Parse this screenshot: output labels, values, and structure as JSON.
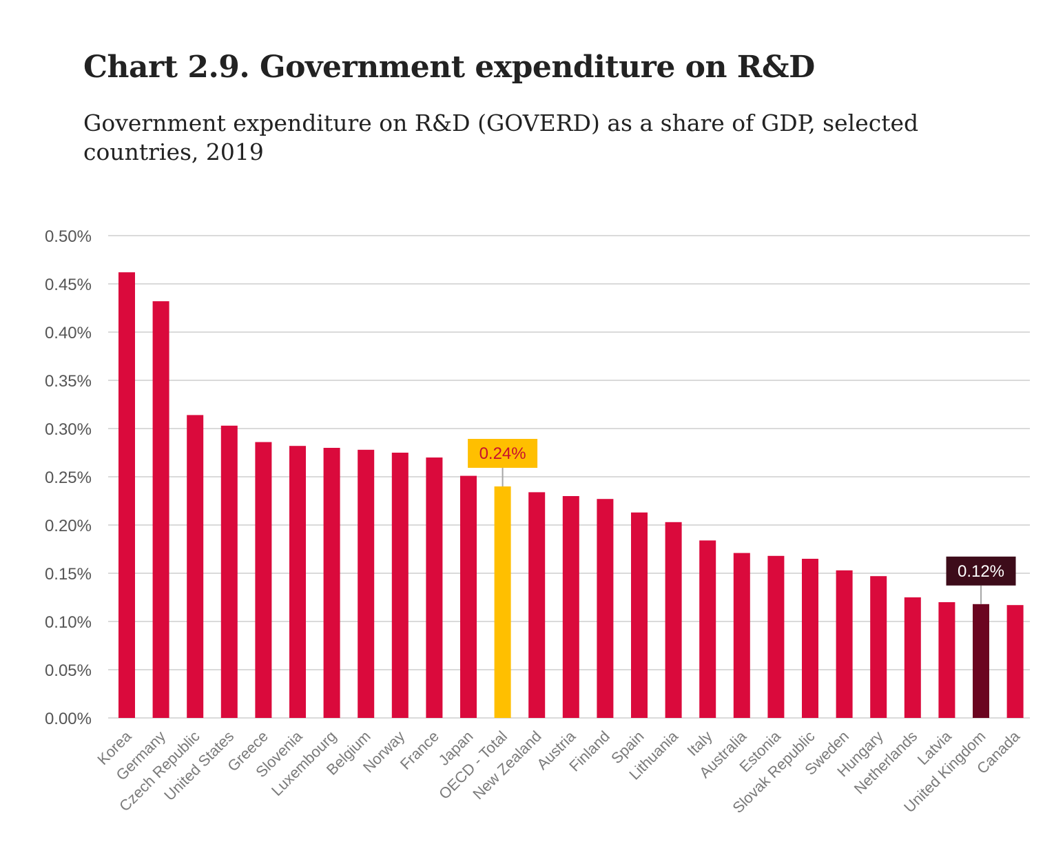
{
  "chart_data": {
    "type": "bar",
    "title": "Chart 2.9. Government expenditure on R&D",
    "subtitle": "Government expenditure on R&D (GOVERD) as a share of GDP, selected countries, 2019",
    "xlabel": "",
    "ylabel": "",
    "ylim": [
      0,
      0.5
    ],
    "y_tick_step": 0.05,
    "y_tick_labels": [
      "0.00%",
      "0.05%",
      "0.10%",
      "0.15%",
      "0.20%",
      "0.25%",
      "0.30%",
      "0.35%",
      "0.40%",
      "0.45%",
      "0.50%"
    ],
    "grid": true,
    "categories": [
      "Korea",
      "Germany",
      "Czech Republic",
      "United States",
      "Greece",
      "Slovenia",
      "Luxembourg",
      "Belgium",
      "Norway",
      "France",
      "Japan",
      "OECD - Total",
      "New Zealand",
      "Austria",
      "Finland",
      "Spain",
      "Lithuania",
      "Italy",
      "Australia",
      "Estonia",
      "Slovak Republic",
      "Sweden",
      "Hungary",
      "Netherlands",
      "Latvia",
      "United Kingdom",
      "Canada"
    ],
    "values": [
      0.462,
      0.432,
      0.314,
      0.303,
      0.286,
      0.282,
      0.28,
      0.278,
      0.275,
      0.27,
      0.251,
      0.24,
      0.234,
      0.23,
      0.227,
      0.213,
      0.203,
      0.184,
      0.171,
      0.168,
      0.165,
      0.153,
      0.147,
      0.125,
      0.12,
      0.118,
      0.117
    ],
    "annotations": [
      {
        "category": "OECD - Total",
        "text": "0.24%",
        "background": "#FFBF00",
        "text_color": "#C8102E"
      },
      {
        "category": "United Kingdom",
        "text": "0.12%",
        "background": "#3D0C1A",
        "text_color": "#FFFFFF"
      }
    ],
    "colors": {
      "default_bar": "#DA0A3C",
      "highlight_oecd": "#FFBF00",
      "highlight_uk": "#6B0520",
      "grid": "#DADADA",
      "axis_text": "#555555",
      "category_text": "#7A7A7A"
    },
    "highlights": {
      "OECD - Total": "#FFBF00",
      "United Kingdom": "#6B0520"
    }
  }
}
